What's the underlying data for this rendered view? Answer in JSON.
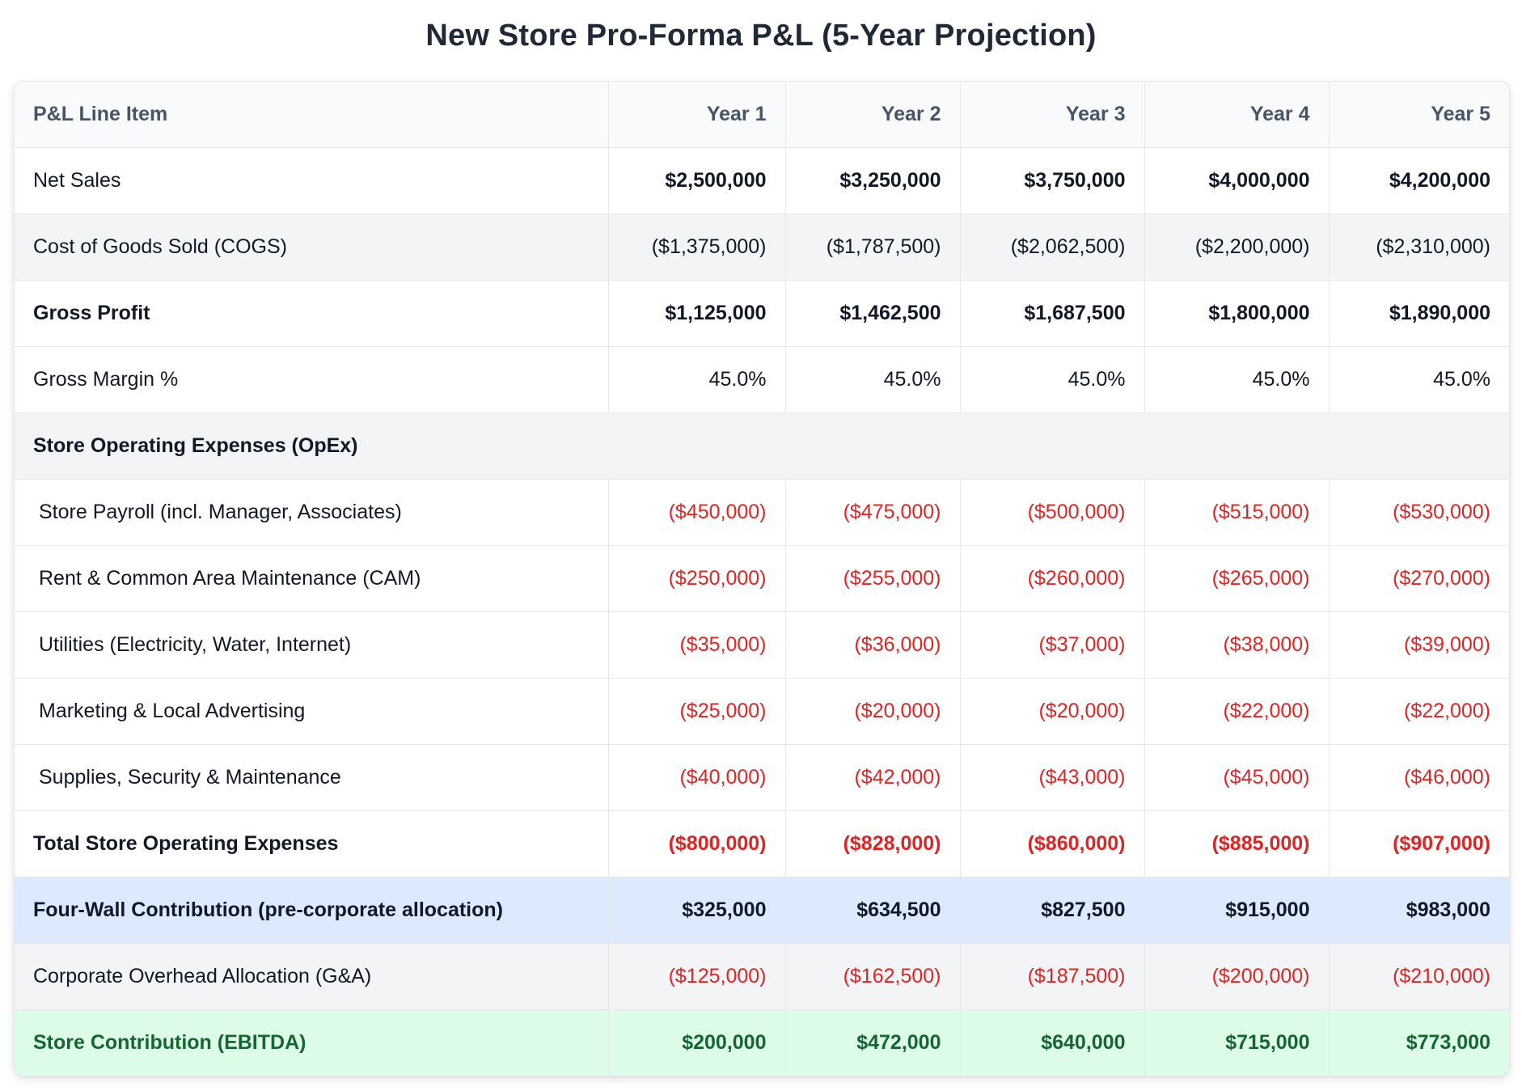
{
  "title": "New Store Pro-Forma P&L (5-Year Projection)",
  "header": {
    "label": "P&L Line Item",
    "years": [
      "Year 1",
      "Year 2",
      "Year 3",
      "Year 4",
      "Year 5"
    ]
  },
  "rows": [
    {
      "label": "Net Sales",
      "values": [
        "$2,500,000",
        "$3,250,000",
        "$3,750,000",
        "$4,000,000",
        "$4,200,000"
      ]
    },
    {
      "label": "Cost of Goods Sold (COGS)",
      "values": [
        "($1,375,000)",
        "($1,787,500)",
        "($2,062,500)",
        "($2,200,000)",
        "($2,310,000)"
      ]
    },
    {
      "label": "Gross Profit",
      "values": [
        "$1,125,000",
        "$1,462,500",
        "$1,687,500",
        "$1,800,000",
        "$1,890,000"
      ]
    },
    {
      "label": "Gross Margin %",
      "values": [
        "45.0%",
        "45.0%",
        "45.0%",
        "45.0%",
        "45.0%"
      ]
    },
    {
      "label": "Store Operating Expenses (OpEx)",
      "values": []
    },
    {
      "label": "Store Payroll (incl. Manager, Associates)",
      "values": [
        "($450,000)",
        "($475,000)",
        "($500,000)",
        "($515,000)",
        "($530,000)"
      ]
    },
    {
      "label": "Rent & Common Area Maintenance (CAM)",
      "values": [
        "($250,000)",
        "($255,000)",
        "($260,000)",
        "($265,000)",
        "($270,000)"
      ]
    },
    {
      "label": "Utilities (Electricity, Water, Internet)",
      "values": [
        "($35,000)",
        "($36,000)",
        "($37,000)",
        "($38,000)",
        "($39,000)"
      ]
    },
    {
      "label": "Marketing & Local Advertising",
      "values": [
        "($25,000)",
        "($20,000)",
        "($20,000)",
        "($22,000)",
        "($22,000)"
      ]
    },
    {
      "label": "Supplies, Security & Maintenance",
      "values": [
        "($40,000)",
        "($42,000)",
        "($43,000)",
        "($45,000)",
        "($46,000)"
      ]
    },
    {
      "label": "Total Store Operating Expenses",
      "values": [
        "($800,000)",
        "($828,000)",
        "($860,000)",
        "($885,000)",
        "($907,000)"
      ]
    },
    {
      "label": "Four-Wall Contribution (pre-corporate allocation)",
      "values": [
        "$325,000",
        "$634,500",
        "$827,500",
        "$915,000",
        "$983,000"
      ]
    },
    {
      "label": "Corporate Overhead Allocation (G&A)",
      "values": [
        "($125,000)",
        "($162,500)",
        "($187,500)",
        "($200,000)",
        "($210,000)"
      ]
    },
    {
      "label": "Store Contribution (EBITDA)",
      "values": [
        "$200,000",
        "$472,000",
        "$640,000",
        "$715,000",
        "$773,000"
      ]
    }
  ],
  "colors": {
    "negative": "#dc2626",
    "four_wall_bg": "#dbeafe",
    "ebitda_bg": "#dcfce7",
    "ebitda_text": "#166534",
    "section_bg": "#f3f4f6"
  }
}
